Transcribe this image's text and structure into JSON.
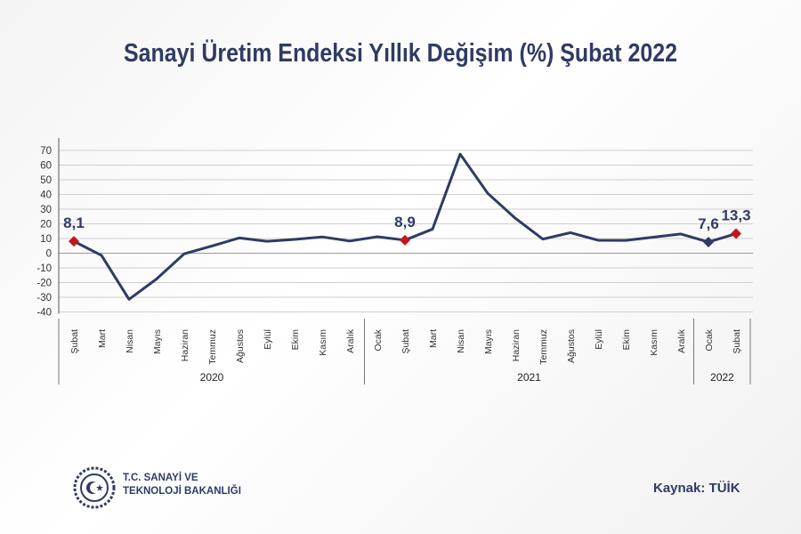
{
  "title": "Sanayi Üretim Endeksi Yıllık Değişim (%) Şubat 2022",
  "organization": {
    "line1": "T.C. SANAYİ VE",
    "line2": "TEKNOLOJİ BAKANLIĞI"
  },
  "source": "Kaynak: TÜİK",
  "colors": {
    "line": "#2f3b63",
    "highlight": "#c4161c",
    "grid": "#cfcfcf",
    "text": "#2f3b63"
  },
  "chart_data": {
    "type": "line",
    "title": "Sanayi Üretim Endeksi Yıllık Değişim (%) Şubat 2022",
    "ylim": [
      -40,
      70
    ],
    "yticks": [
      70,
      60,
      50,
      40,
      30,
      20,
      10,
      0,
      -10,
      -20,
      -30,
      -40
    ],
    "categories": [
      "Şubat",
      "Mart",
      "Nisan",
      "Mayıs",
      "Haziran",
      "Temmuz",
      "Ağustos",
      "Eylül",
      "Ekim",
      "Kasım",
      "Aralık",
      "Ocak",
      "Şubat",
      "Mart",
      "Nisan",
      "Mayıs",
      "Haziran",
      "Temmuz",
      "Ağustos",
      "Eylül",
      "Ekim",
      "Kasım",
      "Aralık",
      "Ocak",
      "Şubat"
    ],
    "values": [
      8.1,
      -1.5,
      -31.4,
      -17.5,
      -0.4,
      4.9,
      10.4,
      8.1,
      9.4,
      11.1,
      8.3,
      11.2,
      8.9,
      16.4,
      67.5,
      40.8,
      23.8,
      9.6,
      14.0,
      8.8,
      8.7,
      10.9,
      13.1,
      7.6,
      13.3
    ],
    "years": [
      {
        "label": "2020",
        "start": 0,
        "end": 10
      },
      {
        "label": "2021",
        "start": 11,
        "end": 22
      },
      {
        "label": "2022",
        "start": 23,
        "end": 24
      }
    ],
    "annotations": [
      {
        "index": 0,
        "label": "8,1",
        "marker": "red"
      },
      {
        "index": 12,
        "label": "8,9",
        "marker": "red"
      },
      {
        "index": 23,
        "label": "7,6",
        "marker": "navy"
      },
      {
        "index": 24,
        "label": "13,3",
        "marker": "red"
      }
    ]
  }
}
